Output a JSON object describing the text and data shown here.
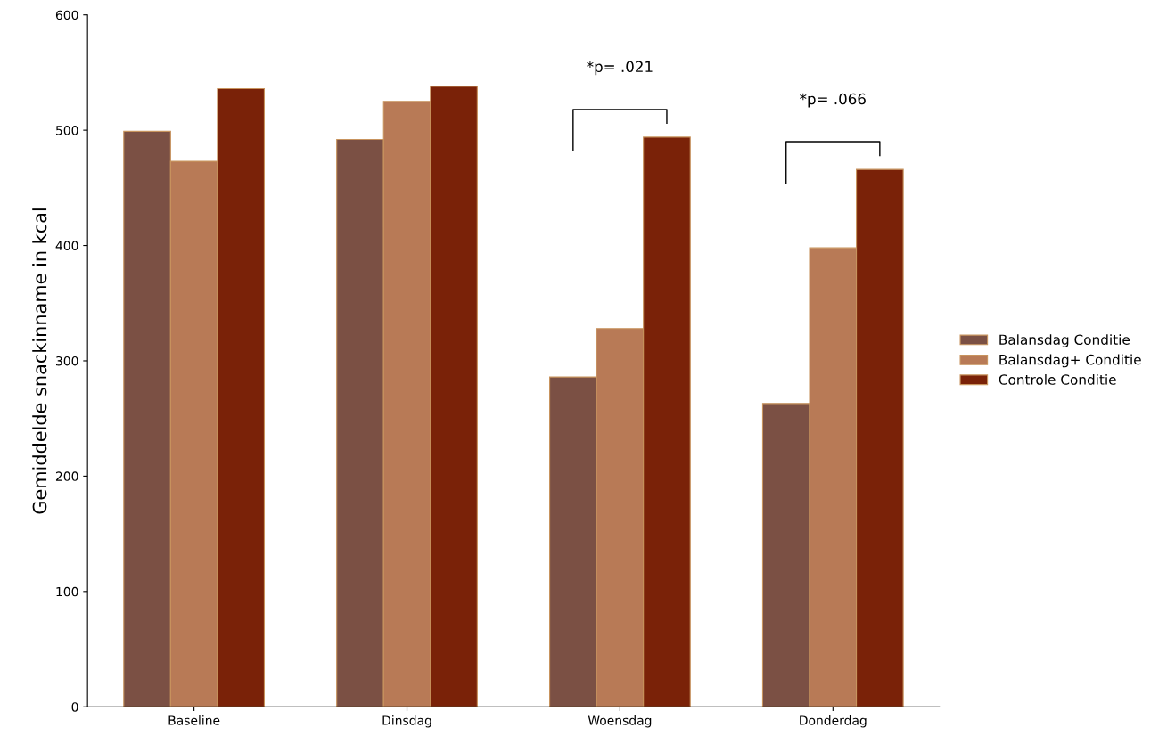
{
  "chart_data": {
    "type": "bar",
    "ylabel": "Gemiddelde snackinname in kcal",
    "categories": [
      "Baseline",
      "Dinsdag",
      "Woensdag",
      "Donderdag"
    ],
    "series": [
      {
        "name": "Balansdag Conditie",
        "color": "#7b5044",
        "values": [
          499,
          492,
          286,
          263
        ]
      },
      {
        "name": "Balansdag+ Conditie",
        "color": "#b87a56",
        "values": [
          473,
          525,
          328,
          398
        ]
      },
      {
        "name": "Controle Conditie",
        "color": "#7a2208",
        "values": [
          536,
          538,
          494,
          466
        ]
      }
    ],
    "ylim": [
      0,
      600
    ],
    "yticks": [
      0,
      100,
      200,
      300,
      400,
      500,
      600
    ],
    "grid": false,
    "legend": "right",
    "annotations": [
      "*p= .021",
      "*p= .066"
    ]
  }
}
